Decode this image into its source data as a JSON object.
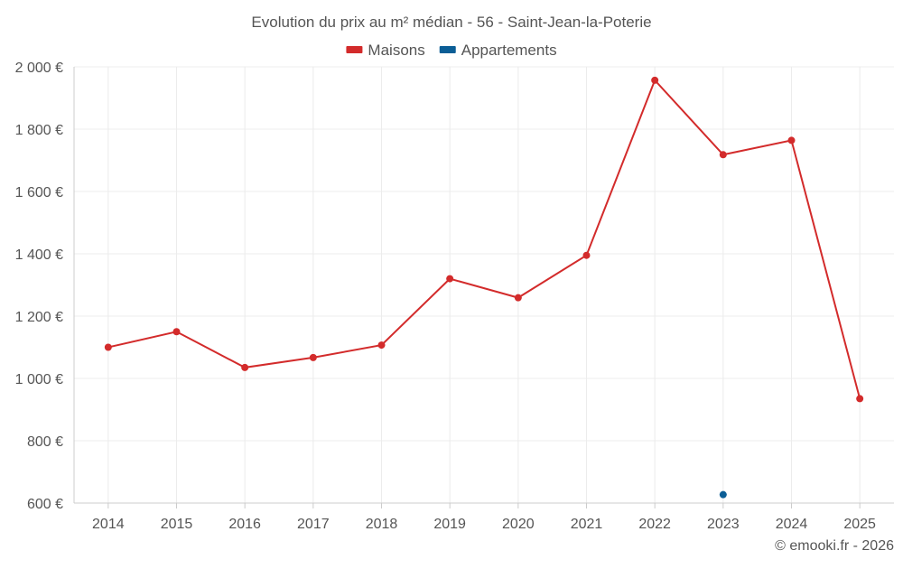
{
  "chart_data": {
    "type": "line",
    "title": "Evolution du prix au m² médian - 56 - Saint-Jean-la-Poterie",
    "categories": [
      "2014",
      "2015",
      "2016",
      "2017",
      "2018",
      "2019",
      "2020",
      "2021",
      "2022",
      "2023",
      "2024",
      "2025"
    ],
    "series": [
      {
        "name": "Maisons",
        "color": "#d32b2b",
        "values": [
          1100,
          1150,
          1035,
          1067,
          1107,
          1320,
          1259,
          1395,
          1957,
          1718,
          1764,
          935
        ]
      },
      {
        "name": "Appartements",
        "color": "#0b5e96",
        "values": [
          null,
          null,
          null,
          null,
          null,
          null,
          null,
          null,
          null,
          627,
          null,
          null
        ]
      }
    ],
    "ylim": [
      600,
      2000
    ],
    "yticks": [
      600,
      800,
      1000,
      1200,
      1400,
      1600,
      1800,
      2000
    ],
    "ytick_labels": [
      "600 €",
      "800 €",
      "1 000 €",
      "1 200 €",
      "1 400 €",
      "1 600 €",
      "1 800 €",
      "2 000 €"
    ],
    "xlabel": "",
    "ylabel": "",
    "grid": true,
    "legend_position": "top-center"
  },
  "credit": "© emooki.fr - 2026"
}
